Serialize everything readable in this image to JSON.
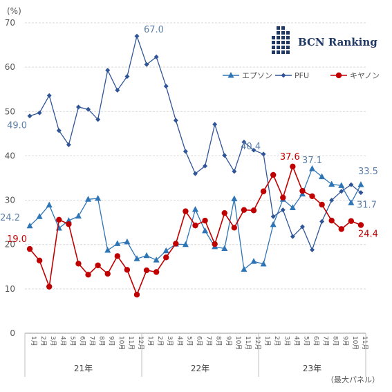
{
  "chart_data": {
    "type": "line",
    "unit_label": "(%)",
    "note": "（最大パネル）",
    "logo_text": "BCN Ranking",
    "ylim": [
      0,
      70
    ],
    "yticks": [
      0,
      10,
      20,
      30,
      40,
      50,
      60,
      70
    ],
    "months": [
      "1月",
      "2月",
      "3月",
      "4月",
      "5月",
      "6月",
      "7月",
      "8月",
      "9月",
      "10月",
      "11月",
      "12月",
      "1月",
      "2月",
      "3月",
      "4月",
      "5月",
      "6月",
      "7月",
      "8月",
      "9月",
      "10月",
      "11月",
      "12月",
      "1月",
      "2月",
      "3月",
      "4月",
      "5月",
      "6月",
      "7月",
      "8月",
      "9月",
      "10月",
      "11月"
    ],
    "years": [
      {
        "label": "21年",
        "start": 0,
        "end": 11
      },
      {
        "label": "22年",
        "start": 12,
        "end": 23
      },
      {
        "label": "23年",
        "start": 24,
        "end": 34
      }
    ],
    "series": [
      {
        "name": "エプソン",
        "color": "#2e75b6",
        "marker": "triangle",
        "values": [
          24.2,
          26.3,
          28.9,
          23.7,
          25.4,
          26.4,
          30.2,
          30.4,
          18.7,
          20.2,
          20.6,
          16.8,
          17.5,
          16.5,
          18.6,
          20.1,
          20.0,
          27.9,
          23.1,
          19.5,
          19.1,
          30.3,
          14.4,
          16.2,
          15.6,
          24.5,
          30.2,
          28.3,
          31.4,
          37.1,
          35.3,
          33.6,
          33.3,
          29.4,
          33.5
        ],
        "labels": [
          {
            "index": 0,
            "text": "24.2"
          },
          {
            "index": 29,
            "text": "37.1"
          },
          {
            "index": 34,
            "text": "33.5"
          }
        ]
      },
      {
        "name": "PFU",
        "color": "#2f5597",
        "marker": "diamond",
        "values": [
          49.0,
          49.7,
          53.6,
          45.7,
          42.5,
          51.0,
          50.5,
          48.2,
          59.3,
          54.8,
          57.9,
          67.0,
          60.6,
          62.3,
          55.7,
          48.0,
          41.0,
          36.0,
          37.7,
          47.1,
          40.1,
          36.5,
          43.1,
          41.3,
          40.4,
          26.3,
          27.8,
          21.8,
          24.0,
          18.8,
          25.2,
          30.0,
          32.0,
          33.5,
          31.7
        ],
        "labels": [
          {
            "index": 0,
            "text": "49.0"
          },
          {
            "index": 11,
            "text": "67.0"
          },
          {
            "index": 24,
            "text": "40.4"
          },
          {
            "index": 34,
            "text": "31.7"
          }
        ]
      },
      {
        "name": "キヤノン",
        "color": "#c00000",
        "marker": "circle",
        "values": [
          19.0,
          16.4,
          10.5,
          25.6,
          24.6,
          15.7,
          13.2,
          15.3,
          13.4,
          17.4,
          14.3,
          8.7,
          14.2,
          13.8,
          17.1,
          20.2,
          27.5,
          24.3,
          25.4,
          20.1,
          27.1,
          23.8,
          27.8,
          27.7,
          32.0,
          35.7,
          30.6,
          37.6,
          32.1,
          30.9,
          29.0,
          25.4,
          23.5,
          25.3,
          24.4
        ],
        "labels": [
          {
            "index": 0,
            "text": "19.0"
          },
          {
            "index": 27,
            "text": "37.6"
          },
          {
            "index": 34,
            "text": "24.4"
          }
        ]
      }
    ]
  }
}
